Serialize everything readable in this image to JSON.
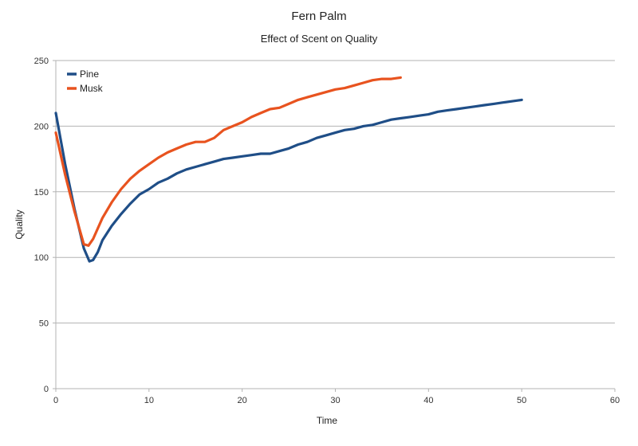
{
  "chart_data": {
    "type": "line",
    "title": "Fern Palm",
    "subtitle": "Effect of Scent on Quality",
    "xlabel": "Time",
    "ylabel": "Quality",
    "xlim": [
      0,
      60
    ],
    "ylim": [
      0,
      250
    ],
    "x_ticks": [
      0,
      10,
      20,
      30,
      40,
      50,
      60
    ],
    "y_ticks": [
      0,
      50,
      100,
      150,
      200,
      250
    ],
    "grid": "horizontal",
    "legend_position": "top-left",
    "series": [
      {
        "name": "Pine",
        "color": "#1f4e87",
        "x": [
          0,
          1,
          2,
          3,
          3.6,
          4,
          4.5,
          5,
          6,
          7,
          8,
          9,
          10,
          11,
          12,
          13,
          14,
          15,
          16,
          17,
          18,
          19,
          20,
          21,
          22,
          23,
          24,
          25,
          26,
          27,
          28,
          29,
          30,
          31,
          32,
          33,
          34,
          35,
          36,
          37,
          38,
          39,
          40,
          41,
          42,
          43,
          44,
          45,
          46,
          47,
          48,
          49,
          50
        ],
        "y": [
          210,
          171,
          137,
          107,
          97,
          98,
          104,
          113,
          124,
          133,
          141,
          148,
          152,
          157,
          160,
          164,
          167,
          169,
          171,
          173,
          175,
          176,
          177,
          178,
          179,
          179,
          181,
          183,
          186,
          188,
          191,
          193,
          195,
          197,
          198,
          200,
          201,
          203,
          205,
          206,
          207,
          208,
          209,
          211,
          212,
          213,
          214,
          215,
          216,
          217,
          218,
          219,
          220
        ]
      },
      {
        "name": "Musk",
        "color": "#e8531f",
        "x": [
          0,
          1,
          2,
          3,
          3.5,
          4,
          5,
          6,
          7,
          8,
          9,
          10,
          11,
          12,
          13,
          14,
          15,
          16,
          17,
          18,
          19,
          20,
          21,
          22,
          23,
          24,
          25,
          26,
          27,
          28,
          29,
          30,
          31,
          32,
          33,
          34,
          35,
          36,
          37
        ],
        "y": [
          195,
          163,
          135,
          110,
          109,
          114,
          130,
          142,
          152,
          160,
          166,
          171,
          176,
          180,
          183,
          186,
          188,
          188,
          191,
          197,
          200,
          203,
          207,
          210,
          213,
          214,
          217,
          220,
          222,
          224,
          226,
          228,
          229,
          231,
          233,
          235,
          236,
          236,
          237
        ]
      }
    ]
  }
}
